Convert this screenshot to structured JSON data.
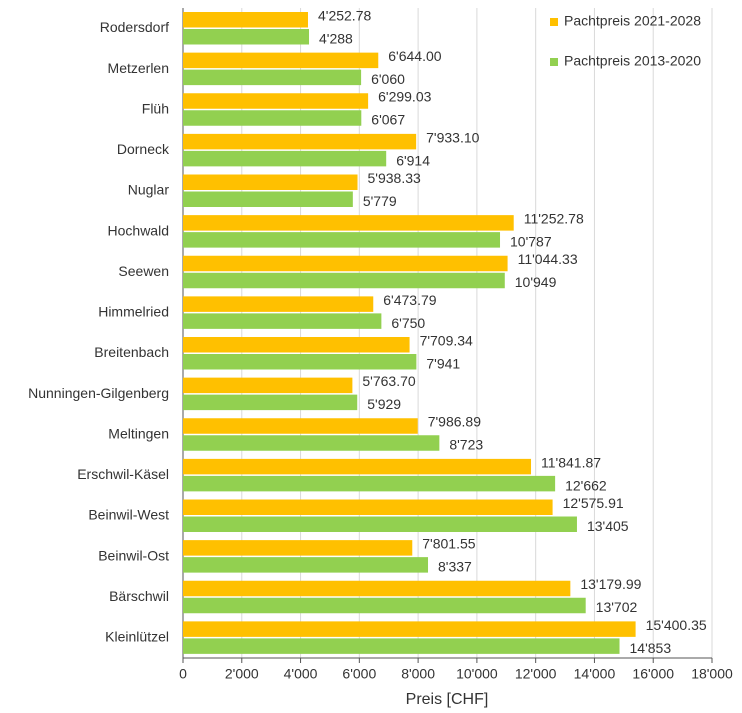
{
  "chart_data": {
    "type": "bar",
    "orientation": "horizontal",
    "xlabel": "Preis [CHF]",
    "categories": [
      "Rodersdorf",
      "Metzerlen",
      "Flüh",
      "Dorneck",
      "Nuglar",
      "Hochwald",
      "Seewen",
      "Himmelried",
      "Breitenbach",
      "Nunningen-Gilgenberg",
      "Meltingen",
      "Erschwil-Käsel",
      "Beinwil-West",
      "Beinwil-Ost",
      "Bärschwil",
      "Kleinlützel"
    ],
    "series": [
      {
        "name": "Pachtpreis 2021-2028",
        "color": "#ffc000",
        "values": [
          4252.78,
          6644.0,
          6299.03,
          7933.1,
          5938.33,
          11252.78,
          11044.33,
          6473.79,
          7709.34,
          5763.7,
          7986.89,
          11841.87,
          12575.91,
          7801.55,
          13179.99,
          15400.35
        ],
        "value_labels": [
          "4'252.78",
          "6'644.00",
          "6'299.03",
          "7'933.10",
          "5'938.33",
          "11'252.78",
          "11'044.33",
          "6'473.79",
          "7'709.34",
          "5'763.70",
          "7'986.89",
          "11'841.87",
          "12'575.91",
          "7'801.55",
          "13'179.99",
          "15'400.35"
        ]
      },
      {
        "name": "Pachtpreis 2013-2020",
        "color": "#92d050",
        "values": [
          4288,
          6060,
          6067,
          6914,
          5779,
          10787,
          10949,
          6750,
          7941,
          5929,
          8723,
          12662,
          13405,
          8337,
          13702,
          14853
        ],
        "value_labels": [
          "4'288",
          "6'060",
          "6'067",
          "6'914",
          "5'779",
          "10'787",
          "10'949",
          "6'750",
          "7'941",
          "5'929",
          "8'723",
          "12'662",
          "13'405",
          "8'337",
          "13'702",
          "14'853"
        ]
      }
    ],
    "xlim": [
      0,
      18000
    ],
    "xticks": [
      0,
      {
        "value": 2000,
        "label": "2'000"
      },
      {
        "value": 4000,
        "label": "4'000"
      },
      {
        "value": 6000,
        "label": "6'000"
      },
      {
        "value": 8000,
        "label": "8'000"
      },
      {
        "value": 10000,
        "label": "10'000"
      },
      {
        "value": 12000,
        "label": "12'000"
      },
      {
        "value": 14000,
        "label": "14'000"
      },
      {
        "value": 16000,
        "label": "16'000"
      },
      {
        "value": 18000,
        "label": "18'000"
      }
    ],
    "grid": true,
    "legend": "upper right"
  }
}
